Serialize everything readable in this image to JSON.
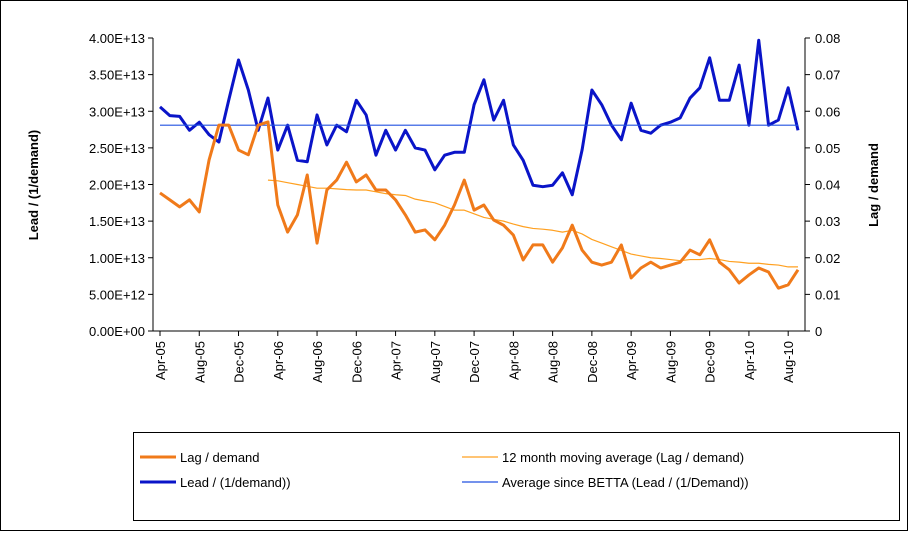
{
  "chart_data": {
    "type": "line",
    "categories": [
      "Apr-05",
      null,
      null,
      null,
      "Aug-05",
      null,
      null,
      null,
      "Dec-05",
      null,
      null,
      null,
      "Apr-06",
      null,
      null,
      null,
      "Aug-06",
      null,
      null,
      null,
      "Dec-06",
      null,
      null,
      null,
      "Apr-07",
      null,
      null,
      null,
      "Aug-07",
      null,
      null,
      null,
      "Dec-07",
      null,
      null,
      null,
      "Apr-08",
      null,
      null,
      null,
      "Aug-08",
      null,
      null,
      null,
      "Dec-08",
      null,
      null,
      null,
      "Apr-09",
      null,
      null,
      null,
      "Aug-09",
      null,
      null,
      null,
      "Dec-09",
      null,
      null,
      null,
      "Apr-10",
      null,
      null,
      null,
      "Aug-10",
      null
    ],
    "ylabel": "Lead / (1/demand)",
    "y2label": "Lag / demand",
    "ylim": [
      0,
      40000000000000.0
    ],
    "yticks": [
      {
        "value": 0,
        "label": "0.00E+00"
      },
      {
        "value": 5000000000000.0,
        "label": "5.00E+12"
      },
      {
        "value": 10000000000000.0,
        "label": "1.00E+13"
      },
      {
        "value": 15000000000000.0,
        "label": "1.50E+13"
      },
      {
        "value": 20000000000000.0,
        "label": "2.00E+13"
      },
      {
        "value": 25000000000000.0,
        "label": "2.50E+13"
      },
      {
        "value": 30000000000000.0,
        "label": "3.00E+13"
      },
      {
        "value": 35000000000000.0,
        "label": "3.50E+13"
      },
      {
        "value": 40000000000000.0,
        "label": "4.00E+13"
      }
    ],
    "y2lim": [
      0,
      0.08
    ],
    "y2ticks": [
      0,
      0.01,
      0.02,
      0.03,
      0.04,
      0.05,
      0.06,
      0.07,
      0.08
    ],
    "grid": false,
    "series": [
      {
        "name": "Lag / demand",
        "color": "#f07a1a",
        "line_width": 3,
        "axis": "y2",
        "values": [
          0.0377,
          0.0358,
          0.0339,
          0.0358,
          0.0325,
          0.0467,
          0.0562,
          0.0562,
          0.0494,
          0.0481,
          0.0562,
          0.0571,
          0.0344,
          0.027,
          0.0317,
          0.0426,
          0.024,
          0.0385,
          0.0412,
          0.0461,
          0.0407,
          0.0426,
          0.0385,
          0.0385,
          0.0358,
          0.0317,
          0.027,
          0.0276,
          0.0249,
          0.0289,
          0.0344,
          0.0412,
          0.033,
          0.0344,
          0.0303,
          0.0289,
          0.0262,
          0.0194,
          0.0235,
          0.0235,
          0.0188,
          0.0227,
          0.0289,
          0.0221,
          0.0188,
          0.018,
          0.0188,
          0.0235,
          0.0145,
          0.0172,
          0.0188,
          0.0172,
          0.018,
          0.0188,
          0.0221,
          0.0208,
          0.0249,
          0.0188,
          0.0167,
          0.0131,
          0.0153,
          0.0172,
          0.0161,
          0.0117,
          0.0126,
          0.0167
        ]
      },
      {
        "name": "12 month moving average (Lag / demand)",
        "color": "#ffa020",
        "line_width": 1.2,
        "axis": "y2",
        "values": [
          null,
          null,
          null,
          null,
          null,
          null,
          null,
          null,
          null,
          null,
          null,
          0.0412,
          0.041,
          0.0405,
          0.04,
          0.0395,
          0.039,
          0.039,
          0.0388,
          0.0386,
          0.0385,
          0.0385,
          0.038,
          0.0375,
          0.0372,
          0.037,
          0.036,
          0.0355,
          0.035,
          0.034,
          0.033,
          0.033,
          0.032,
          0.031,
          0.0305,
          0.03,
          0.0292,
          0.0285,
          0.028,
          0.0278,
          0.0275,
          0.027,
          0.0275,
          0.0265,
          0.025,
          0.024,
          0.023,
          0.022,
          0.021,
          0.0205,
          0.02,
          0.0198,
          0.0195,
          0.0192,
          0.0195,
          0.0195,
          0.0198,
          0.0195,
          0.019,
          0.0188,
          0.0185,
          0.0185,
          0.0182,
          0.018,
          0.0175,
          0.0175
        ]
      },
      {
        "name": "Lead / (1/demand))",
        "color": "#0a14c8",
        "line_width": 3,
        "values": [
          30600000000000.0,
          29400000000000.0,
          29300000000000.0,
          27400000000000.0,
          28500000000000.0,
          26800000000000.0,
          25800000000000.0,
          31500000000000.0,
          37000000000000.0,
          32900000000000.0,
          27400000000000.0,
          31800000000000.0,
          24700000000000.0,
          28100000000000.0,
          23300000000000.0,
          23100000000000.0,
          29500000000000.0,
          25400000000000.0,
          28100000000000.0,
          27200000000000.0,
          31500000000000.0,
          29500000000000.0,
          24000000000000.0,
          27400000000000.0,
          24700000000000.0,
          27400000000000.0,
          25000000000000.0,
          24700000000000.0,
          22000000000000.0,
          24000000000000.0,
          24400000000000.0,
          24400000000000.0,
          30900000000000.0,
          34300000000000.0,
          28800000000000.0,
          31500000000000.0,
          25400000000000.0,
          23300000000000.0,
          19900000000000.0,
          19700000000000.0,
          19900000000000.0,
          21600000000000.0,
          18600000000000.0,
          24700000000000.0,
          32900000000000.0,
          30900000000000.0,
          28100000000000.0,
          26100000000000.0,
          31100000000000.0,
          27400000000000.0,
          27000000000000.0,
          28100000000000.0,
          28500000000000.0,
          29100000000000.0,
          31800000000000.0,
          33200000000000.0,
          37300000000000.0,
          31500000000000.0,
          31500000000000.0,
          36300000000000.0,
          28100000000000.0,
          39700000000000.0,
          28100000000000.0,
          28800000000000.0,
          33200000000000.0,
          27400000000000.0
        ]
      },
      {
        "name": "Average since BETTA (Lead / (1/Demand))",
        "color": "#2050e0",
        "line_width": 1.2,
        "values": [
          28100000000000.0,
          28100000000000.0,
          28100000000000.0,
          28100000000000.0,
          28100000000000.0,
          28100000000000.0,
          28100000000000.0,
          28100000000000.0,
          28100000000000.0,
          28100000000000.0,
          28100000000000.0,
          28100000000000.0,
          28100000000000.0,
          28100000000000.0,
          28100000000000.0,
          28100000000000.0,
          28100000000000.0,
          28100000000000.0,
          28100000000000.0,
          28100000000000.0,
          28100000000000.0,
          28100000000000.0,
          28100000000000.0,
          28100000000000.0,
          28100000000000.0,
          28100000000000.0,
          28100000000000.0,
          28100000000000.0,
          28100000000000.0,
          28100000000000.0,
          28100000000000.0,
          28100000000000.0,
          28100000000000.0,
          28100000000000.0,
          28100000000000.0,
          28100000000000.0,
          28100000000000.0,
          28100000000000.0,
          28100000000000.0,
          28100000000000.0,
          28100000000000.0,
          28100000000000.0,
          28100000000000.0,
          28100000000000.0,
          28100000000000.0,
          28100000000000.0,
          28100000000000.0,
          28100000000000.0,
          28100000000000.0,
          28100000000000.0,
          28100000000000.0,
          28100000000000.0,
          28100000000000.0,
          28100000000000.0,
          28100000000000.0,
          28100000000000.0,
          28100000000000.0,
          28100000000000.0,
          28100000000000.0,
          28100000000000.0,
          28100000000000.0,
          28100000000000.0,
          28100000000000.0,
          28100000000000.0,
          28100000000000.0,
          28100000000000.0
        ]
      }
    ]
  }
}
